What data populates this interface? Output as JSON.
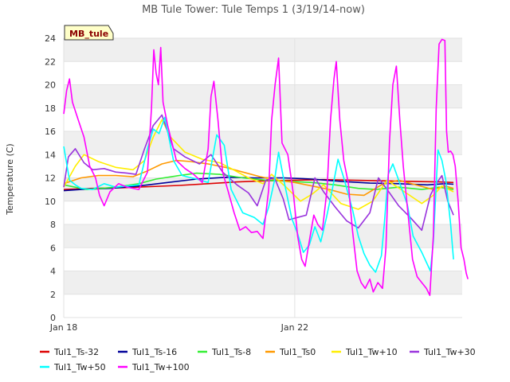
{
  "chart_data": {
    "type": "line",
    "title": "MB Tule Tower: Tule Temps 1 (3/19/14-now)",
    "xlabel": "",
    "ylabel": "Temperature (C)",
    "badge": "MB_tule",
    "ylim": [
      0,
      24
    ],
    "yticks": [
      0,
      2,
      4,
      6,
      8,
      10,
      12,
      14,
      16,
      18,
      20,
      22,
      24
    ],
    "xlim": [
      0,
      6.9
    ],
    "xticks": [
      {
        "pos": 0,
        "label": "Jan 18"
      },
      {
        "pos": 4,
        "label": "Jan 22"
      }
    ],
    "grid": true,
    "legend_position": "bottom",
    "series": [
      {
        "name": "Tul1_Ts-32",
        "color": "#dd0000",
        "points": [
          [
            0,
            11.0
          ],
          [
            0.5,
            11.1
          ],
          [
            1,
            11.15
          ],
          [
            1.5,
            11.25
          ],
          [
            2,
            11.35
          ],
          [
            2.5,
            11.5
          ],
          [
            3,
            11.65
          ],
          [
            3.5,
            11.75
          ],
          [
            4,
            11.8
          ],
          [
            4.5,
            11.85
          ],
          [
            5,
            11.8
          ],
          [
            5.5,
            11.75
          ],
          [
            6,
            11.7
          ],
          [
            6.5,
            11.65
          ],
          [
            6.75,
            11.6
          ]
        ]
      },
      {
        "name": "Tul1_Ts-16",
        "color": "#000099",
        "points": [
          [
            0,
            10.9
          ],
          [
            0.3,
            11.0
          ],
          [
            0.8,
            11.1
          ],
          [
            1.3,
            11.3
          ],
          [
            1.8,
            11.6
          ],
          [
            2.3,
            11.9
          ],
          [
            2.8,
            12.05
          ],
          [
            3.3,
            12.0
          ],
          [
            3.8,
            12.0
          ],
          [
            4.3,
            11.9
          ],
          [
            4.8,
            11.7
          ],
          [
            5.3,
            11.55
          ],
          [
            5.8,
            11.5
          ],
          [
            6.3,
            11.4
          ],
          [
            6.6,
            11.5
          ],
          [
            6.75,
            11.45
          ]
        ]
      },
      {
        "name": "Tul1_Ts-8",
        "color": "#33ee33",
        "points": [
          [
            0,
            11.4
          ],
          [
            0.4,
            11.0
          ],
          [
            0.9,
            11.2
          ],
          [
            1.3,
            11.5
          ],
          [
            1.6,
            11.9
          ],
          [
            2.0,
            12.2
          ],
          [
            2.3,
            12.4
          ],
          [
            2.7,
            12.3
          ],
          [
            3.1,
            12.0
          ],
          [
            3.5,
            11.8
          ],
          [
            3.9,
            11.7
          ],
          [
            4.3,
            11.6
          ],
          [
            4.7,
            11.4
          ],
          [
            5.1,
            11.1
          ],
          [
            5.4,
            11.0
          ],
          [
            5.8,
            11.2
          ],
          [
            6.2,
            11.0
          ],
          [
            6.5,
            11.2
          ],
          [
            6.75,
            11.0
          ]
        ]
      },
      {
        "name": "Tul1_Ts0",
        "color": "#ff9900",
        "points": [
          [
            0,
            11.5
          ],
          [
            0.3,
            12.0
          ],
          [
            0.6,
            12.2
          ],
          [
            0.9,
            12.2
          ],
          [
            1.2,
            12.1
          ],
          [
            1.45,
            12.6
          ],
          [
            1.7,
            13.2
          ],
          [
            1.95,
            13.5
          ],
          [
            2.2,
            13.4
          ],
          [
            2.5,
            13.2
          ],
          [
            2.8,
            12.9
          ],
          [
            3.1,
            12.5
          ],
          [
            3.4,
            12.1
          ],
          [
            3.7,
            11.8
          ],
          [
            4.0,
            11.6
          ],
          [
            4.3,
            11.3
          ],
          [
            4.6,
            11.0
          ],
          [
            4.9,
            10.6
          ],
          [
            5.2,
            10.5
          ],
          [
            5.5,
            11.4
          ],
          [
            5.8,
            11.8
          ],
          [
            6.1,
            11.4
          ],
          [
            6.4,
            11.0
          ],
          [
            6.6,
            11.3
          ],
          [
            6.75,
            11.1
          ]
        ]
      },
      {
        "name": "Tul1_Tw+10",
        "color": "#ffee00",
        "points": [
          [
            0,
            11.2
          ],
          [
            0.2,
            13.0
          ],
          [
            0.35,
            14.0
          ],
          [
            0.6,
            13.4
          ],
          [
            0.9,
            12.9
          ],
          [
            1.2,
            12.7
          ],
          [
            1.4,
            13.5
          ],
          [
            1.55,
            15.5
          ],
          [
            1.7,
            17.0
          ],
          [
            1.85,
            15.5
          ],
          [
            2.1,
            14.2
          ],
          [
            2.4,
            13.6
          ],
          [
            2.7,
            13.3
          ],
          [
            2.9,
            12.8
          ],
          [
            3.2,
            12.0
          ],
          [
            3.45,
            11.5
          ],
          [
            3.6,
            12.3
          ],
          [
            3.85,
            11.2
          ],
          [
            4.1,
            10.0
          ],
          [
            4.3,
            10.6
          ],
          [
            4.5,
            11.4
          ],
          [
            4.8,
            9.8
          ],
          [
            5.1,
            9.3
          ],
          [
            5.35,
            10.0
          ],
          [
            5.6,
            11.8
          ],
          [
            5.9,
            10.8
          ],
          [
            6.2,
            9.8
          ],
          [
            6.4,
            10.5
          ],
          [
            6.55,
            11.3
          ],
          [
            6.75,
            10.8
          ]
        ]
      },
      {
        "name": "Tul1_Tw+30",
        "color": "#9933dd",
        "points": [
          [
            0,
            11.2
          ],
          [
            0.08,
            13.8
          ],
          [
            0.2,
            14.5
          ],
          [
            0.35,
            13.3
          ],
          [
            0.5,
            12.7
          ],
          [
            0.7,
            12.8
          ],
          [
            0.9,
            12.5
          ],
          [
            1.1,
            12.4
          ],
          [
            1.25,
            12.3
          ],
          [
            1.4,
            14.5
          ],
          [
            1.55,
            16.5
          ],
          [
            1.7,
            17.4
          ],
          [
            1.9,
            14.5
          ],
          [
            2.1,
            13.8
          ],
          [
            2.35,
            13.2
          ],
          [
            2.55,
            14.0
          ],
          [
            2.75,
            12.5
          ],
          [
            3.0,
            11.4
          ],
          [
            3.2,
            10.7
          ],
          [
            3.35,
            9.6
          ],
          [
            3.5,
            11.8
          ],
          [
            3.65,
            12.0
          ],
          [
            3.8,
            10.2
          ],
          [
            3.9,
            8.4
          ],
          [
            4.05,
            8.6
          ],
          [
            4.2,
            8.8
          ],
          [
            4.35,
            12.0
          ],
          [
            4.5,
            10.8
          ],
          [
            4.7,
            9.5
          ],
          [
            4.9,
            8.3
          ],
          [
            5.1,
            7.7
          ],
          [
            5.3,
            9.0
          ],
          [
            5.45,
            12.0
          ],
          [
            5.6,
            11.0
          ],
          [
            5.8,
            9.6
          ],
          [
            6.0,
            8.6
          ],
          [
            6.2,
            7.5
          ],
          [
            6.35,
            10.5
          ],
          [
            6.45,
            11.5
          ],
          [
            6.55,
            12.2
          ],
          [
            6.65,
            10.0
          ],
          [
            6.75,
            8.8
          ]
        ]
      },
      {
        "name": "Tul1_Tw+50",
        "color": "#00ffff",
        "points": [
          [
            0,
            14.7
          ],
          [
            0.1,
            11.8
          ],
          [
            0.2,
            11.4
          ],
          [
            0.3,
            11.1
          ],
          [
            0.5,
            11.0
          ],
          [
            0.7,
            11.5
          ],
          [
            0.9,
            11.2
          ],
          [
            1.1,
            11.3
          ],
          [
            1.3,
            11.4
          ],
          [
            1.45,
            14.5
          ],
          [
            1.55,
            16.2
          ],
          [
            1.65,
            15.8
          ],
          [
            1.75,
            17.2
          ],
          [
            1.9,
            13.5
          ],
          [
            2.05,
            12.2
          ],
          [
            2.3,
            11.9
          ],
          [
            2.5,
            11.6
          ],
          [
            2.65,
            15.7
          ],
          [
            2.78,
            14.8
          ],
          [
            2.9,
            11.0
          ],
          [
            3.1,
            9.0
          ],
          [
            3.3,
            8.6
          ],
          [
            3.45,
            8.0
          ],
          [
            3.55,
            9.5
          ],
          [
            3.65,
            11.8
          ],
          [
            3.72,
            14.2
          ],
          [
            3.82,
            11.6
          ],
          [
            3.95,
            8.5
          ],
          [
            4.05,
            7.2
          ],
          [
            4.15,
            5.6
          ],
          [
            4.25,
            6.2
          ],
          [
            4.35,
            7.8
          ],
          [
            4.45,
            6.5
          ],
          [
            4.55,
            8.6
          ],
          [
            4.65,
            11.0
          ],
          [
            4.75,
            13.6
          ],
          [
            4.85,
            12.0
          ],
          [
            5.0,
            9.3
          ],
          [
            5.1,
            7.0
          ],
          [
            5.2,
            5.5
          ],
          [
            5.3,
            4.5
          ],
          [
            5.4,
            3.9
          ],
          [
            5.5,
            5.3
          ],
          [
            5.55,
            8.0
          ],
          [
            5.62,
            12.3
          ],
          [
            5.7,
            13.2
          ],
          [
            5.8,
            11.8
          ],
          [
            5.95,
            9.7
          ],
          [
            6.05,
            7.0
          ],
          [
            6.2,
            5.6
          ],
          [
            6.35,
            4.0
          ],
          [
            6.4,
            6.5
          ],
          [
            6.48,
            14.4
          ],
          [
            6.55,
            13.5
          ],
          [
            6.62,
            11.7
          ],
          [
            6.7,
            8.0
          ],
          [
            6.75,
            5.0
          ]
        ]
      },
      {
        "name": "Tul1_Tw+100",
        "color": "#ff00ff",
        "points": [
          [
            0,
            17.5
          ],
          [
            0.05,
            19.5
          ],
          [
            0.1,
            20.5
          ],
          [
            0.15,
            18.5
          ],
          [
            0.25,
            17.0
          ],
          [
            0.35,
            15.5
          ],
          [
            0.45,
            13.0
          ],
          [
            0.55,
            12.0
          ],
          [
            0.62,
            10.5
          ],
          [
            0.7,
            9.6
          ],
          [
            0.8,
            10.8
          ],
          [
            0.95,
            11.5
          ],
          [
            1.1,
            11.2
          ],
          [
            1.3,
            11.0
          ],
          [
            1.45,
            12.5
          ],
          [
            1.52,
            18.0
          ],
          [
            1.56,
            23.0
          ],
          [
            1.6,
            21.0
          ],
          [
            1.64,
            20.0
          ],
          [
            1.68,
            23.2
          ],
          [
            1.72,
            18.5
          ],
          [
            1.8,
            16.5
          ],
          [
            1.95,
            13.5
          ],
          [
            2.1,
            12.8
          ],
          [
            2.25,
            12.3
          ],
          [
            2.4,
            11.6
          ],
          [
            2.5,
            14.5
          ],
          [
            2.55,
            19.0
          ],
          [
            2.6,
            20.3
          ],
          [
            2.67,
            17.0
          ],
          [
            2.75,
            12.5
          ],
          [
            2.85,
            10.8
          ],
          [
            2.95,
            9.0
          ],
          [
            3.05,
            7.5
          ],
          [
            3.15,
            7.8
          ],
          [
            3.25,
            7.3
          ],
          [
            3.35,
            7.4
          ],
          [
            3.45,
            6.8
          ],
          [
            3.55,
            11.0
          ],
          [
            3.6,
            17.0
          ],
          [
            3.66,
            20.0
          ],
          [
            3.72,
            22.3
          ],
          [
            3.78,
            15.0
          ],
          [
            3.88,
            14.0
          ],
          [
            3.98,
            10.5
          ],
          [
            4.05,
            7.0
          ],
          [
            4.12,
            5.0
          ],
          [
            4.18,
            4.4
          ],
          [
            4.26,
            6.8
          ],
          [
            4.33,
            8.8
          ],
          [
            4.4,
            8.0
          ],
          [
            4.48,
            7.5
          ],
          [
            4.56,
            11.0
          ],
          [
            4.62,
            17.0
          ],
          [
            4.68,
            20.5
          ],
          [
            4.72,
            22.0
          ],
          [
            4.78,
            17.0
          ],
          [
            4.85,
            13.5
          ],
          [
            4.93,
            11.5
          ],
          [
            5.0,
            7.5
          ],
          [
            5.08,
            4.0
          ],
          [
            5.15,
            3.0
          ],
          [
            5.22,
            2.5
          ],
          [
            5.3,
            3.3
          ],
          [
            5.36,
            2.2
          ],
          [
            5.44,
            3.0
          ],
          [
            5.52,
            2.5
          ],
          [
            5.58,
            6.0
          ],
          [
            5.64,
            15.0
          ],
          [
            5.7,
            20.0
          ],
          [
            5.76,
            21.6
          ],
          [
            5.82,
            17.0
          ],
          [
            5.88,
            13.0
          ],
          [
            5.96,
            9.0
          ],
          [
            6.04,
            5.0
          ],
          [
            6.12,
            3.5
          ],
          [
            6.2,
            3.0
          ],
          [
            6.28,
            2.5
          ],
          [
            6.34,
            1.9
          ],
          [
            6.4,
            7.0
          ],
          [
            6.45,
            18.0
          ],
          [
            6.5,
            23.5
          ],
          [
            6.55,
            23.9
          ],
          [
            6.6,
            23.8
          ],
          [
            6.63,
            16.0
          ],
          [
            6.66,
            14.2
          ],
          [
            6.7,
            14.3
          ],
          [
            6.74,
            14.0
          ],
          [
            6.78,
            13.0
          ],
          [
            6.83,
            10.0
          ],
          [
            6.88,
            6.0
          ],
          [
            6.93,
            5.0
          ],
          [
            6.97,
            3.8
          ],
          [
            7.0,
            3.3
          ]
        ]
      }
    ]
  }
}
